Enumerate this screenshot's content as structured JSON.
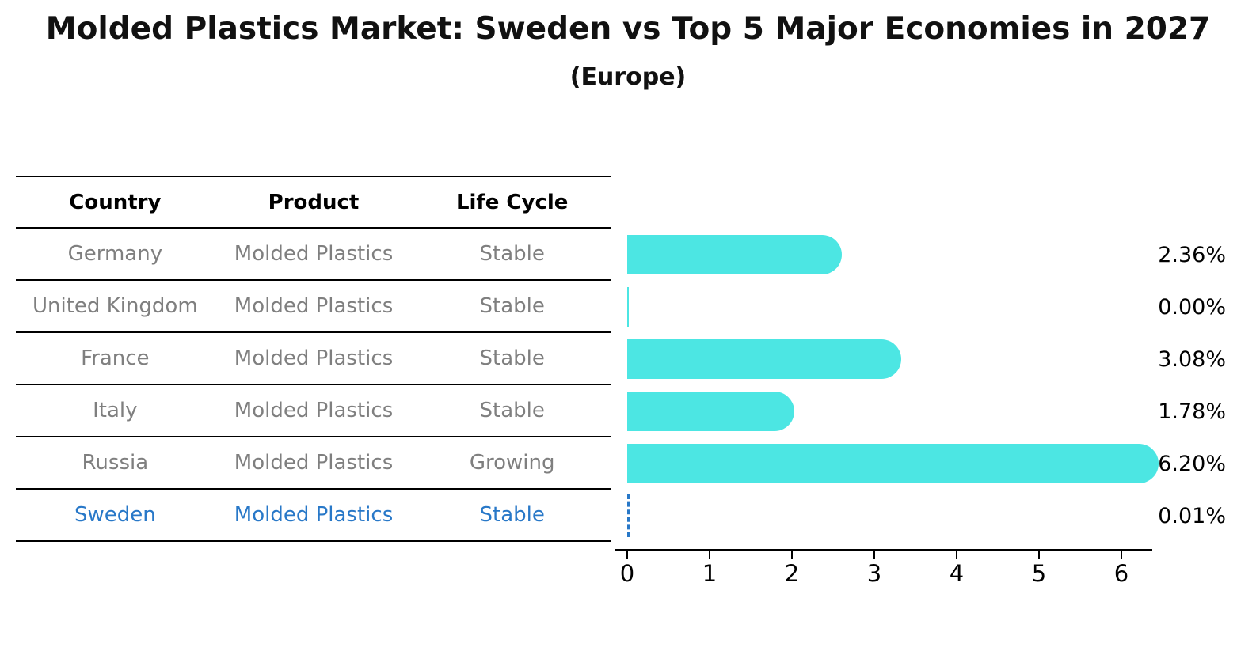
{
  "title": "Molded Plastics Market: Sweden vs Top 5 Major Economies in 2027",
  "subtitle": "(Europe)",
  "colors": {
    "bar": "#4ce6e3",
    "highlight_blue": "#2878c8",
    "row_text_gray": "#7f7f7f",
    "axis_black": "#000000",
    "background": "#ffffff"
  },
  "chart_data": {
    "type": "bar",
    "orientation": "horizontal",
    "title": "Molded Plastics Market: Sweden vs Top 5 Major Economies in 2027",
    "subtitle": "(Europe)",
    "columns": [
      "Country",
      "Product",
      "Life Cycle"
    ],
    "rows": [
      {
        "country": "Germany",
        "product": "Molded Plastics",
        "life_cycle": "Stable",
        "value": 2.36,
        "label": "2.36%",
        "highlight": false
      },
      {
        "country": "United Kingdom",
        "product": "Molded Plastics",
        "life_cycle": "Stable",
        "value": 0.0,
        "label": "0.00%",
        "highlight": false
      },
      {
        "country": "France",
        "product": "Molded Plastics",
        "life_cycle": "Stable",
        "value": 3.08,
        "label": "3.08%",
        "highlight": false
      },
      {
        "country": "Italy",
        "product": "Molded Plastics",
        "life_cycle": "Stable",
        "value": 1.78,
        "label": "1.78%",
        "highlight": false
      },
      {
        "country": "Russia",
        "product": "Molded Plastics",
        "life_cycle": "Growing",
        "value": 6.2,
        "label": "6.20%",
        "highlight": false
      },
      {
        "country": "Sweden",
        "product": "Molded Plastics",
        "life_cycle": "Stable",
        "value": 0.01,
        "label": "0.01%",
        "highlight": true
      }
    ],
    "x_ticks": [
      0,
      1,
      2,
      3,
      4,
      5,
      6
    ],
    "xlim": [
      0,
      6.5
    ],
    "grid": false,
    "legend": false,
    "value_suffix": "%"
  }
}
